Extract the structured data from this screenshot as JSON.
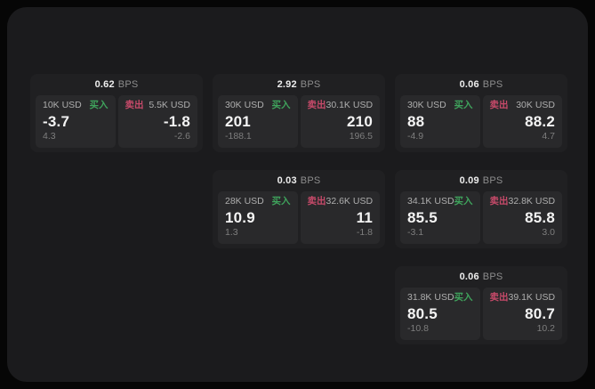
{
  "colors": {
    "buy": "#3fa35c",
    "sell": "#c74a6a",
    "panel_bg": "#1b1b1d",
    "card_bg": "#202022",
    "subcard_bg": "#29292b"
  },
  "labels": {
    "bps_unit": "BPS",
    "buy": "买入",
    "sell": "卖出"
  },
  "cards": [
    {
      "row": 1,
      "col": 1,
      "bps": "0.62",
      "bps_unit": "BPS",
      "buy": {
        "amount": "10K USD",
        "side_label": "买入",
        "price": "-3.7",
        "delta": "4.3"
      },
      "sell": {
        "amount": "5.5K USD",
        "side_label": "卖出",
        "price": "-1.8",
        "delta": "-2.6"
      }
    },
    {
      "row": 1,
      "col": 2,
      "bps": "2.92",
      "bps_unit": "BPS",
      "buy": {
        "amount": "30K USD",
        "side_label": "买入",
        "price": "201",
        "delta": "-188.1"
      },
      "sell": {
        "amount": "30.1K USD",
        "side_label": "卖出",
        "price": "210",
        "delta": "196.5"
      }
    },
    {
      "row": 1,
      "col": 3,
      "bps": "0.06",
      "bps_unit": "BPS",
      "buy": {
        "amount": "30K USD",
        "side_label": "买入",
        "price": "88",
        "delta": "-4.9"
      },
      "sell": {
        "amount": "30K USD",
        "side_label": "卖出",
        "price": "88.2",
        "delta": "4.7"
      }
    },
    {
      "row": 2,
      "col": 2,
      "bps": "0.03",
      "bps_unit": "BPS",
      "buy": {
        "amount": "28K USD",
        "side_label": "买入",
        "price": "10.9",
        "delta": "1.3"
      },
      "sell": {
        "amount": "32.6K USD",
        "side_label": "卖出",
        "price": "11",
        "delta": "-1.8"
      }
    },
    {
      "row": 2,
      "col": 3,
      "bps": "0.09",
      "bps_unit": "BPS",
      "buy": {
        "amount": "34.1K USD",
        "side_label": "买入",
        "price": "85.5",
        "delta": "-3.1"
      },
      "sell": {
        "amount": "32.8K USD",
        "side_label": "卖出",
        "price": "85.8",
        "delta": "3.0"
      }
    },
    {
      "row": 3,
      "col": 3,
      "bps": "0.06",
      "bps_unit": "BPS",
      "buy": {
        "amount": "31.8K USD",
        "side_label": "买入",
        "price": "80.5",
        "delta": "-10.8"
      },
      "sell": {
        "amount": "39.1K USD",
        "side_label": "卖出",
        "price": "80.7",
        "delta": "10.2"
      }
    }
  ]
}
